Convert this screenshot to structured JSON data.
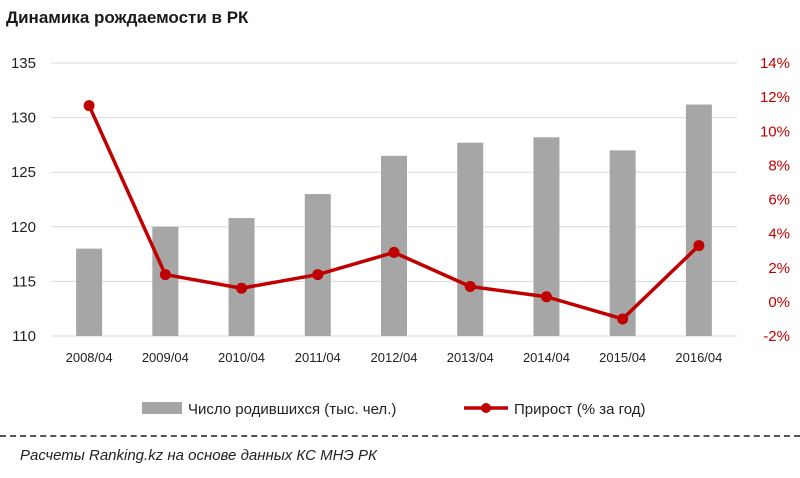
{
  "chart_data": {
    "type": "bar+line",
    "title": "Динамика  рождаемости  в РК",
    "categories": [
      "2008/04",
      "2009/04",
      "2010/04",
      "2011/04",
      "2012/04",
      "2013/04",
      "2014/04",
      "2015/04",
      "2016/04"
    ],
    "series": [
      {
        "name": "Число родившихся (тыс. чел.)",
        "type": "bar",
        "axis": "left",
        "color": "#a6a6a6",
        "values": [
          118.0,
          120.0,
          120.8,
          123.0,
          126.5,
          127.7,
          128.2,
          127.0,
          131.2
        ]
      },
      {
        "name": "Прирост (% за год)",
        "type": "line",
        "axis": "right",
        "color": "#c00000",
        "values": [
          11.5,
          1.6,
          0.8,
          1.6,
          2.9,
          0.9,
          0.3,
          -1.0,
          3.3
        ]
      }
    ],
    "left_axis": {
      "ylim": [
        110,
        135
      ],
      "ticks": [
        110,
        115,
        120,
        125,
        130,
        135
      ]
    },
    "right_axis": {
      "ylim": [
        -2,
        14
      ],
      "ticks": [
        -2,
        0,
        2,
        4,
        6,
        8,
        10,
        12,
        14
      ],
      "tick_labels": [
        "-2%",
        "0%",
        "2%",
        "4%",
        "6%",
        "8%",
        "10%",
        "12%",
        "14%"
      ],
      "color": "#c00000"
    },
    "grid": true,
    "legend_position": "bottom"
  },
  "footer": {
    "source": "Расчеты Ranking.kz на основе данных  КС МНЭ РК"
  }
}
